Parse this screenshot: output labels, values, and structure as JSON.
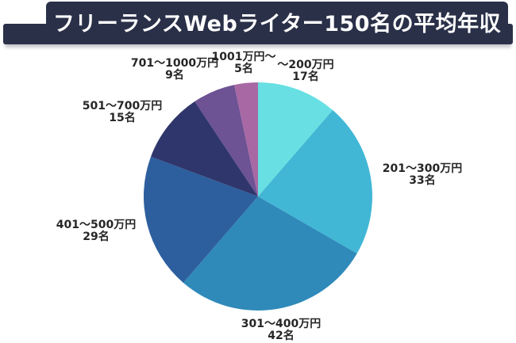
{
  "header": {
    "title": "フリーランスWebライター150名の平均年収",
    "bg_color": "#2a3048",
    "text_color": "#ffffff"
  },
  "chart_data": {
    "type": "pie",
    "title": "フリーランスWebライター150名の平均年収",
    "total": 150,
    "unit": "名",
    "start_angle_deg": 0,
    "direction": "clockwise",
    "legend_position": "around-slices",
    "slices": [
      {
        "label": "〜200万円",
        "count_label": "17名",
        "value": 17,
        "color": "#68e0e3"
      },
      {
        "label": "201〜300万円",
        "count_label": "33名",
        "value": 33,
        "color": "#41b7d5"
      },
      {
        "label": "301〜400万円",
        "count_label": "42名",
        "value": 42,
        "color": "#2f8aba"
      },
      {
        "label": "401〜500万円",
        "count_label": "29名",
        "value": 29,
        "color": "#2d5f9e"
      },
      {
        "label": "501〜700万円",
        "count_label": "15名",
        "value": 15,
        "color": "#2f366b"
      },
      {
        "label": "701〜1000万円",
        "count_label": "9名",
        "value": 9,
        "color": "#6d5294"
      },
      {
        "label": "1001万円〜",
        "count_label": "5名",
        "value": 5,
        "color": "#a768a3"
      }
    ]
  }
}
